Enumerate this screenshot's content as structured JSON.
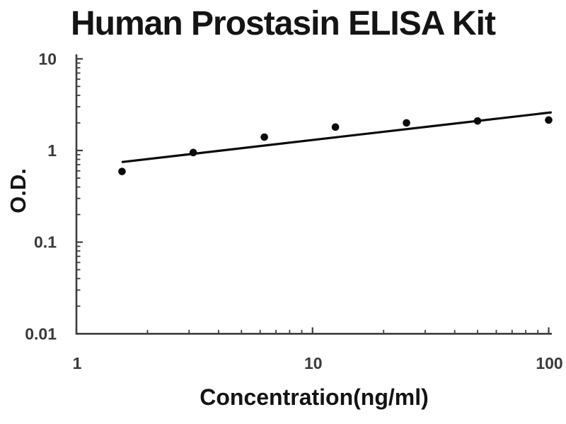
{
  "page": {
    "background": "#ffffff"
  },
  "chart_data": {
    "type": "scatter",
    "title": "Human Prostasin ELISA Kit",
    "xlabel": "Concentration(ng/ml)",
    "ylabel": "O.D.",
    "x_scale": "log",
    "y_scale": "log",
    "xlim": [
      1,
      100
    ],
    "ylim": [
      0.01,
      10
    ],
    "x_major_ticks": [
      1,
      10,
      100
    ],
    "x_tick_labels": [
      "1",
      "10",
      "100"
    ],
    "y_major_ticks": [
      10,
      1,
      0.1,
      0.01
    ],
    "y_tick_labels": [
      "10",
      "1",
      "0.1",
      "0.01"
    ],
    "grid": false,
    "legend": "none",
    "series": [
      {
        "name": "standard-points",
        "type": "scatter",
        "marker": "filled-circle",
        "color": "#0a0a0a",
        "x": [
          1.56,
          3.125,
          6.25,
          12.5,
          25,
          50,
          100
        ],
        "y": [
          0.59,
          0.95,
          1.4,
          1.8,
          2.0,
          2.1,
          2.15
        ]
      },
      {
        "name": "fit-line",
        "type": "line",
        "color": "#0a0a0a",
        "x": [
          1.57,
          102
        ],
        "y": [
          0.75,
          2.6
        ]
      }
    ],
    "colors": {
      "axis": "#3d3d3d",
      "tick_label": "#3a3a3a",
      "text": "#141414",
      "background": "#ffffff"
    }
  }
}
